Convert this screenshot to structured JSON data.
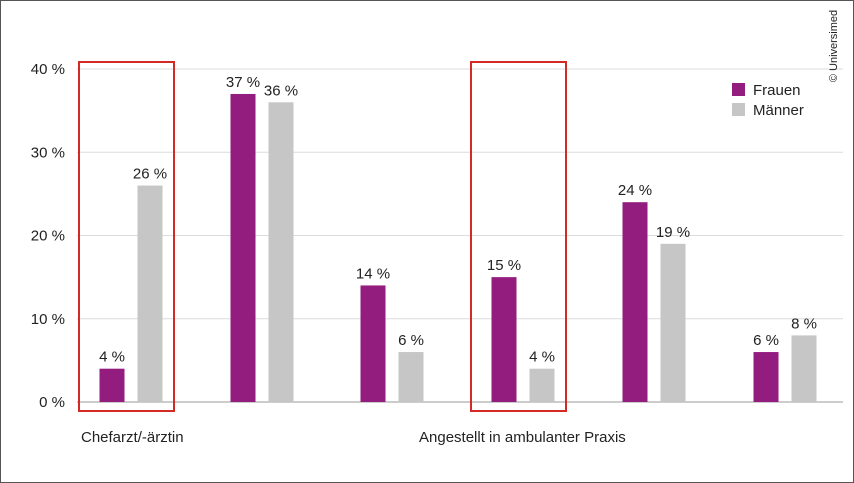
{
  "chart_data": {
    "type": "bar",
    "categories": [
      "",
      "",
      "",
      "",
      "",
      ""
    ],
    "series": [
      {
        "name": "Frauen",
        "color": "#931c7f",
        "values": [
          4,
          37,
          14,
          15,
          24,
          6
        ]
      },
      {
        "name": "Männer",
        "color": "#c6c6c6",
        "values": [
          26,
          36,
          6,
          4,
          19,
          8
        ]
      }
    ],
    "bar_labels": [
      [
        "4 %",
        "37 %",
        "14 %",
        "15 %",
        "24 %",
        "6 %"
      ],
      [
        "26 %",
        "36 %",
        "6 %",
        "4 %",
        "19 %",
        "8 %"
      ]
    ],
    "y_ticks": [
      0,
      10,
      20,
      30,
      40
    ],
    "y_tick_labels": [
      "0 %",
      "10 %",
      "20 %",
      "30 %",
      "40 %"
    ],
    "ylim": [
      0,
      40
    ],
    "grid": true,
    "legend_position": "top-right",
    "annotations": [
      {
        "text": "Chefarzt/-ärztin",
        "highlight_group": 0
      },
      {
        "text": "Angestellt in ambulanter Praxis",
        "highlight_group": 3
      }
    ],
    "highlight_color": "#d42a23",
    "credit": "© Universimed"
  }
}
